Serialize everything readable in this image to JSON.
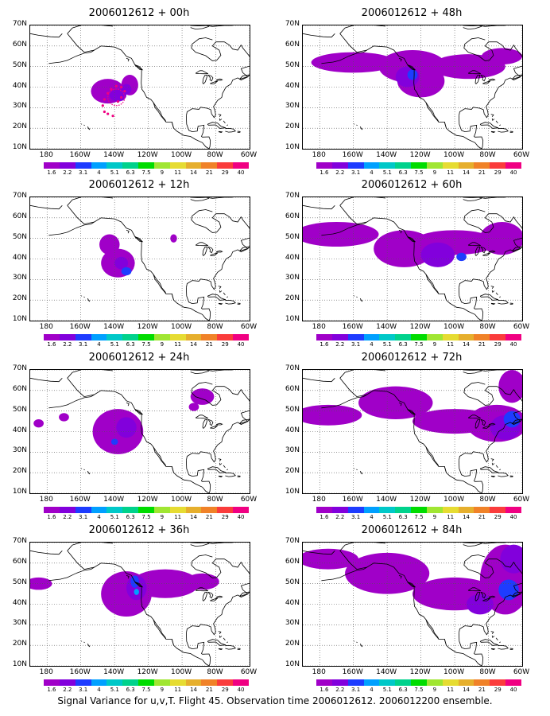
{
  "figure": {
    "footer": "Signal Variance for u,v,T. Flight 45. Observation time 2006012612. 2006012200 ensemble."
  },
  "panels": [
    {
      "title": "2006012612 + 00h"
    },
    {
      "title": "2006012612 + 48h"
    },
    {
      "title": "2006012612 + 12h"
    },
    {
      "title": "2006012612 + 60h"
    },
    {
      "title": "2006012612 + 24h"
    },
    {
      "title": "2006012612 + 72h"
    },
    {
      "title": "2006012612 + 36h"
    },
    {
      "title": "2006012612 + 84h"
    }
  ],
  "axes": {
    "y_labels": [
      "70N",
      "60N",
      "50N",
      "40N",
      "30N",
      "20N",
      "10N"
    ],
    "x_labels": [
      "180",
      "160W",
      "140W",
      "120W",
      "100W",
      "80W",
      "60W"
    ]
  },
  "colorbar": {
    "labels": [
      "1.6",
      "2.2",
      "3.1",
      "4",
      "5.1",
      "6.3",
      "7.5",
      "9",
      "11",
      "14",
      "21",
      "29",
      "40"
    ],
    "colors": [
      "#a000c8",
      "#8200dc",
      "#1e3cff",
      "#00a0ff",
      "#00c8c8",
      "#00d28c",
      "#00dc00",
      "#a0e632",
      "#e6dc32",
      "#e6af2d",
      "#f08228",
      "#fa3c3c",
      "#f00082"
    ]
  },
  "colors": {
    "fill_low": "#a000c8",
    "fill_mid": "#8200dc",
    "fill_high": "#1e3cff",
    "fill_peak": "#00a0ff",
    "obs_track": "#f00082"
  }
}
